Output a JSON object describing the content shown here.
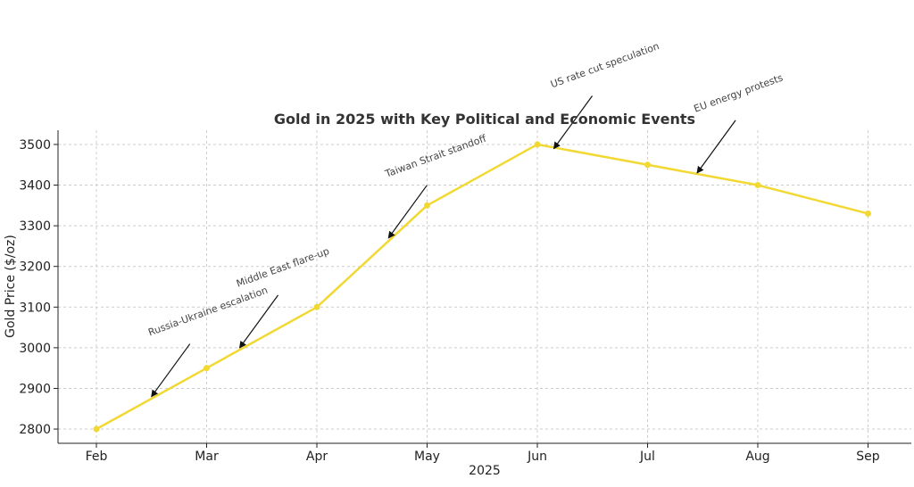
{
  "chart_data": {
    "type": "line",
    "title": "Gold in 2025 with Key Political and Economic Events",
    "xlabel": "2025",
    "ylabel": "Gold Price ($/oz)",
    "categories": [
      "Feb",
      "Mar",
      "Apr",
      "May",
      "Jun",
      "Jul",
      "Aug",
      "Sep"
    ],
    "series": [
      {
        "values": [
          2800,
          2950,
          3100,
          3350,
          3500,
          3450,
          3400,
          3330
        ]
      }
    ],
    "ylim": [
      2765,
      3535
    ],
    "yticks": [
      "2800",
      "2900",
      "3000",
      "3100",
      "3200",
      "3300",
      "3400",
      "3500"
    ],
    "grid": true,
    "line_color": "#f2d832",
    "annotations": [
      {
        "text": "Russia-Ukraine escalation",
        "x_month_index": 0.5,
        "y": 2880
      },
      {
        "text": "Middle East flare-up",
        "x_month_index": 1.3,
        "y": 3000
      },
      {
        "text": "Taiwan Strait standoff",
        "x_month_index": 2.65,
        "y": 3270
      },
      {
        "text": "US rate cut speculation",
        "x_month_index": 4.15,
        "y": 3490
      },
      {
        "text": "EU energy protests",
        "x_month_index": 5.45,
        "y": 3430
      }
    ]
  }
}
